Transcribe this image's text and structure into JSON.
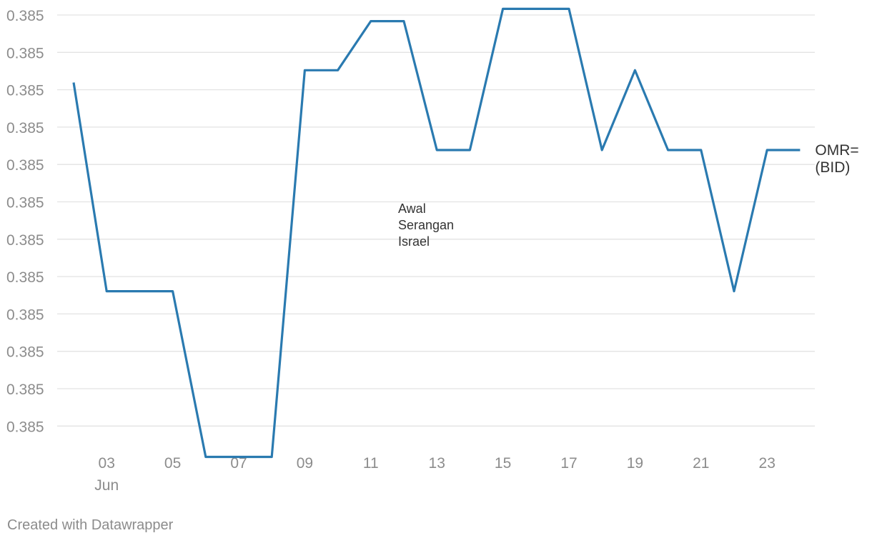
{
  "chart_data": {
    "type": "line",
    "x_month_label": "Jun",
    "x": [
      "02",
      "03",
      "04",
      "05",
      "06",
      "07",
      "08",
      "09",
      "10",
      "11",
      "12",
      "13",
      "14",
      "15",
      "16",
      "17",
      "18",
      "19",
      "20",
      "21",
      "22",
      "23",
      "24"
    ],
    "x_tick_labels": [
      "03",
      "05",
      "07",
      "09",
      "11",
      "13",
      "15",
      "17",
      "19",
      "21",
      "23"
    ],
    "series": [
      {
        "name": "OMR=\n(BID)",
        "color": "#2a7ab0",
        "values": [
          0.38509,
          0.38475,
          0.38475,
          0.38475,
          0.38448,
          0.38448,
          0.38448,
          0.38511,
          0.38511,
          0.38519,
          0.38519,
          0.38498,
          0.38498,
          0.38521,
          0.38521,
          0.38521,
          0.38498,
          0.38511,
          0.38498,
          0.38498,
          0.38475,
          0.38498,
          0.38498
        ]
      }
    ],
    "y_tick_labels": [
      "0.385",
      "0.385",
      "0.385",
      "0.385",
      "0.385",
      "0.385",
      "0.385",
      "0.385",
      "0.385",
      "0.385",
      "0.385",
      "0.385"
    ],
    "ylim": [
      0.3845,
      0.3852
    ],
    "grid": true,
    "annotations": [
      {
        "text_lines": [
          "Awal",
          "Serangan",
          "Israel"
        ],
        "x": "12"
      }
    ],
    "footer": "Created with Datawrapper"
  }
}
